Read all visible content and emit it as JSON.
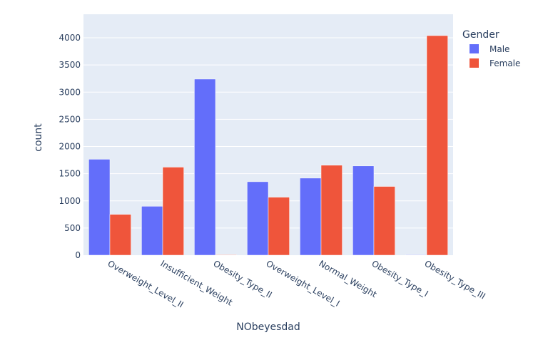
{
  "chart_data": {
    "type": "bar",
    "barmode": "group",
    "xlabel": "NObeyesdad",
    "ylabel": "count",
    "ylim": [
      0,
      4250
    ],
    "yticks": [
      0,
      500,
      1000,
      1500,
      2000,
      2500,
      3000,
      3500,
      4000
    ],
    "grid": true,
    "legend_title": "Gender",
    "legend_position": "top-right",
    "categories": [
      "Overweight_Level_II",
      "Insufficient_Weight",
      "Obesity_Type_II",
      "Overweight_Level_I",
      "Normal_Weight",
      "Obesity_Type_I",
      "Obesity_Type_III"
    ],
    "series": [
      {
        "name": "Male",
        "color": "#636efa",
        "values": [
          1765,
          900,
          3240,
          1352,
          1418,
          1642,
          9
        ]
      },
      {
        "name": "Female",
        "color": "#ef553b",
        "values": [
          751,
          1620,
          9,
          1067,
          1655,
          1265,
          4040
        ]
      }
    ],
    "plot_bg": "#e5ecf6"
  }
}
